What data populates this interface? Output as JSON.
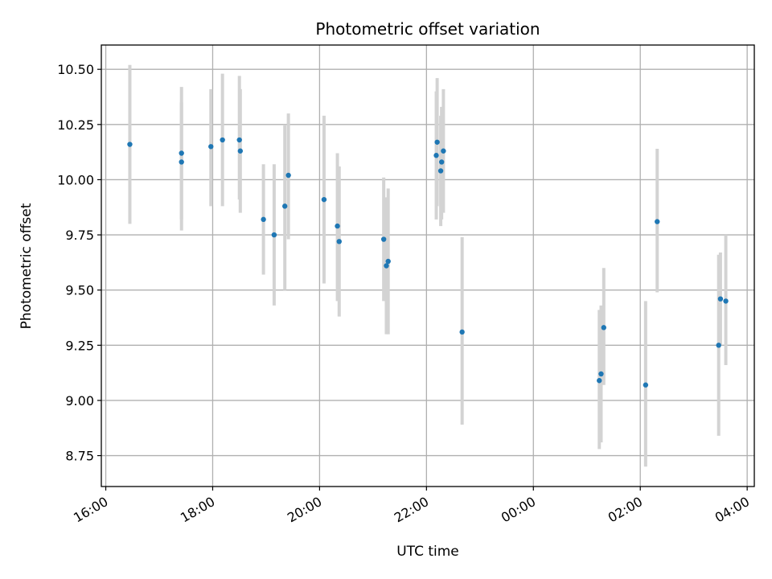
{
  "chart_data": {
    "type": "scatter",
    "title": "Photometric offset variation",
    "xlabel": "UTC time",
    "ylabel": "Photometric offset",
    "x_is_time": true,
    "xlim": [
      "15:55",
      "28:08"
    ],
    "ylim": [
      8.61,
      10.61
    ],
    "x_ticks": [
      {
        "value": "16:00",
        "label": "16:00"
      },
      {
        "value": "18:00",
        "label": "18:00"
      },
      {
        "value": "20:00",
        "label": "20:00"
      },
      {
        "value": "22:00",
        "label": "22:00"
      },
      {
        "value": "24:00",
        "label": "00:00"
      },
      {
        "value": "26:00",
        "label": "02:00"
      },
      {
        "value": "28:00",
        "label": "04:00"
      }
    ],
    "y_ticks": [
      8.75,
      9.0,
      9.25,
      9.5,
      9.75,
      10.0,
      10.25,
      10.5
    ],
    "y_tick_labels": [
      "8.75",
      "9.00",
      "9.25",
      "9.50",
      "9.75",
      "10.00",
      "10.25",
      "10.50"
    ],
    "grid": true,
    "point_color": "#1f77b4",
    "errorbar_color": "#d3d3d3",
    "points": [
      {
        "t": "16:27",
        "y": 10.16,
        "lo": 9.8,
        "hi": 10.52
      },
      {
        "t": "17:25",
        "y": 10.12,
        "lo": 9.82,
        "hi": 10.42
      },
      {
        "t": "17:25",
        "y": 10.08,
        "lo": 9.77,
        "hi": 10.35
      },
      {
        "t": "17:58",
        "y": 10.15,
        "lo": 9.88,
        "hi": 10.41
      },
      {
        "t": "18:11",
        "y": 10.18,
        "lo": 9.88,
        "hi": 10.48
      },
      {
        "t": "18:30",
        "y": 10.18,
        "lo": 9.91,
        "hi": 10.47
      },
      {
        "t": "18:31",
        "y": 10.13,
        "lo": 9.85,
        "hi": 10.41
      },
      {
        "t": "18:57",
        "y": 9.82,
        "lo": 9.57,
        "hi": 10.07
      },
      {
        "t": "19:09",
        "y": 9.75,
        "lo": 9.43,
        "hi": 10.07
      },
      {
        "t": "19:21",
        "y": 9.88,
        "lo": 9.5,
        "hi": 10.25
      },
      {
        "t": "19:25",
        "y": 10.02,
        "lo": 9.73,
        "hi": 10.3
      },
      {
        "t": "20:05",
        "y": 9.91,
        "lo": 9.53,
        "hi": 10.29
      },
      {
        "t": "20:20",
        "y": 9.79,
        "lo": 9.45,
        "hi": 10.12
      },
      {
        "t": "20:22",
        "y": 9.72,
        "lo": 9.38,
        "hi": 10.06
      },
      {
        "t": "21:12",
        "y": 9.73,
        "lo": 9.45,
        "hi": 10.01
      },
      {
        "t": "21:15",
        "y": 9.61,
        "lo": 9.3,
        "hi": 9.92
      },
      {
        "t": "21:17",
        "y": 9.63,
        "lo": 9.3,
        "hi": 9.96
      },
      {
        "t": "22:11",
        "y": 10.11,
        "lo": 9.82,
        "hi": 10.4
      },
      {
        "t": "22:12",
        "y": 10.17,
        "lo": 9.88,
        "hi": 10.46
      },
      {
        "t": "22:16",
        "y": 10.04,
        "lo": 9.79,
        "hi": 10.29
      },
      {
        "t": "22:17",
        "y": 10.08,
        "lo": 9.82,
        "hi": 10.33
      },
      {
        "t": "22:19",
        "y": 10.13,
        "lo": 9.85,
        "hi": 10.41
      },
      {
        "t": "22:40",
        "y": 9.31,
        "lo": 8.89,
        "hi": 9.74
      },
      {
        "t": "25:14",
        "y": 9.09,
        "lo": 8.78,
        "hi": 9.41
      },
      {
        "t": "25:16",
        "y": 9.12,
        "lo": 8.81,
        "hi": 9.43
      },
      {
        "t": "25:19",
        "y": 9.33,
        "lo": 9.07,
        "hi": 9.6
      },
      {
        "t": "26:06",
        "y": 9.07,
        "lo": 8.7,
        "hi": 9.45
      },
      {
        "t": "26:19",
        "y": 9.81,
        "lo": 9.49,
        "hi": 10.14
      },
      {
        "t": "27:28",
        "y": 9.25,
        "lo": 8.84,
        "hi": 9.66
      },
      {
        "t": "27:30",
        "y": 9.46,
        "lo": 9.25,
        "hi": 9.67
      },
      {
        "t": "27:36",
        "y": 9.45,
        "lo": 9.16,
        "hi": 9.75
      }
    ]
  }
}
